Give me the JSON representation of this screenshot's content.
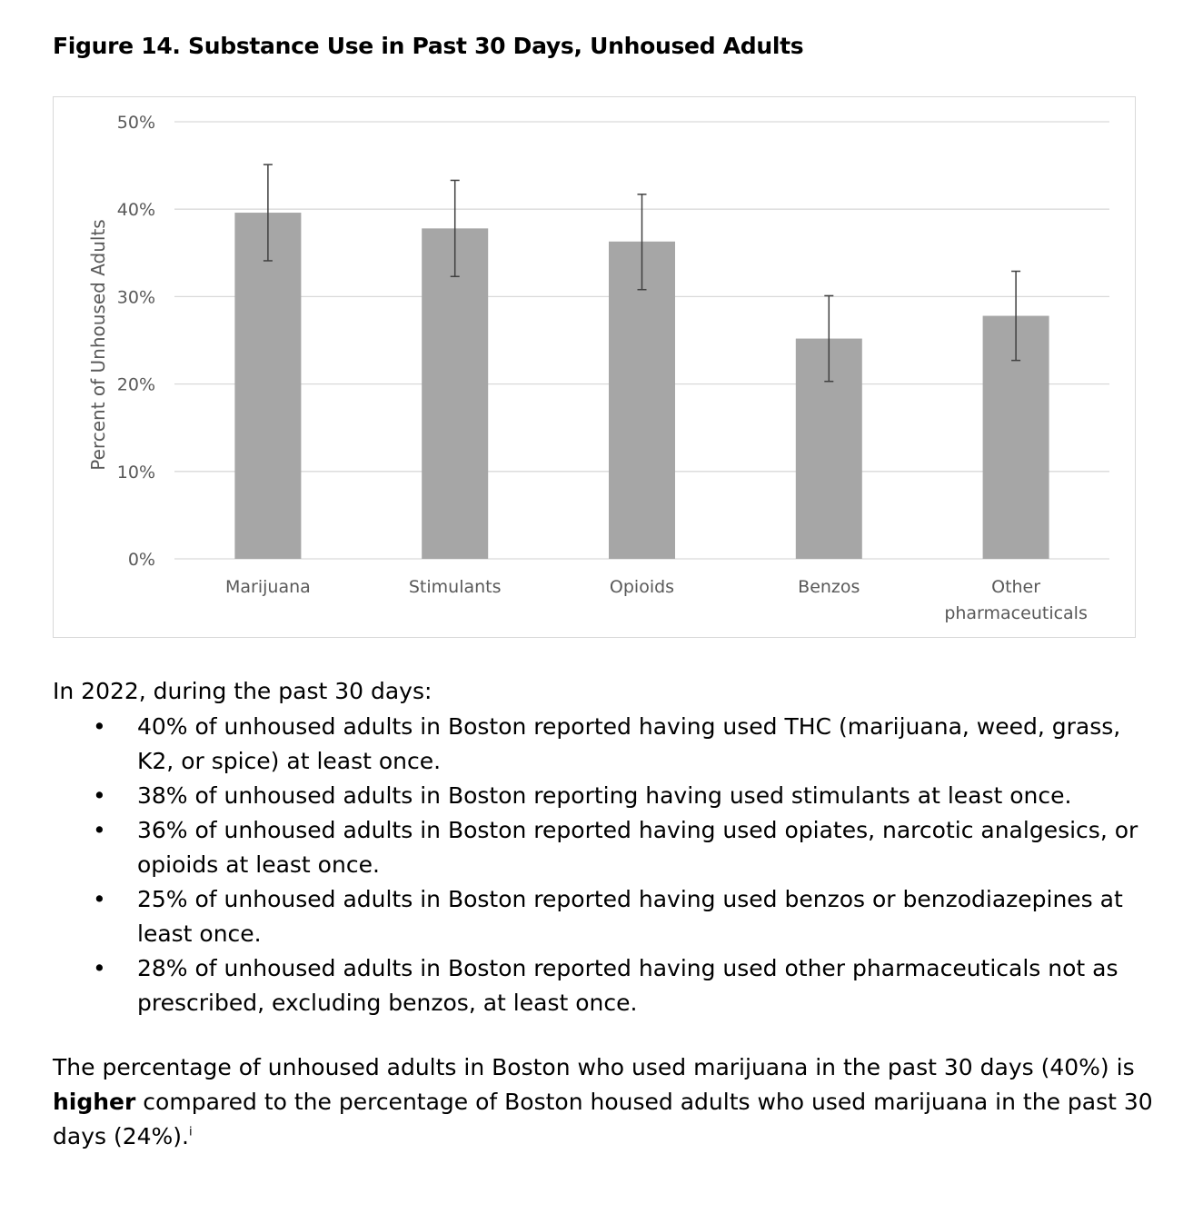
{
  "figure_title": "Figure 14. Substance Use in Past 30 Days, Unhoused Adults",
  "chart_data": {
    "type": "bar",
    "ylabel": "Percent of Unhoused Adults",
    "xlabel": "",
    "ylim": [
      0,
      50
    ],
    "yticks": [
      "0%",
      "10%",
      "20%",
      "30%",
      "40%",
      "50%"
    ],
    "grid": true,
    "categories": [
      "Marijuana",
      "Stimulants",
      "Opioids",
      "Benzos",
      "Other pharmaceuticals"
    ],
    "values": [
      39.6,
      37.8,
      36.3,
      25.2,
      27.8
    ],
    "error_low": [
      34.1,
      32.3,
      30.8,
      20.3,
      22.7
    ],
    "error_high": [
      45.1,
      43.3,
      41.7,
      30.1,
      32.9
    ],
    "bar_color": "#a6a6a6",
    "error_color": "#404040",
    "grid_color": "#d9d9d9"
  },
  "text": {
    "intro": "In 2022, during the past 30 days:",
    "bullet_char": "•",
    "bullets": [
      "40% of unhoused adults in Boston reported having used THC (marijuana, weed, grass, K2, or spice) at least once.",
      "38% of unhoused adults in Boston reporting having used stimulants at least once.",
      "36% of unhoused adults in Boston reported having used opiates, narcotic analgesics, or opioids at least once.",
      "25% of unhoused adults in Boston reported having used benzos or benzodiazepines at least once.",
      "28% of unhoused adults in Boston reported having used other pharmaceuticals not as prescribed, excluding benzos, at least once."
    ],
    "closing_part1": "The percentage of unhoused adults in Boston who used marijuana in the past 30 days (40%) is ",
    "closing_bold": "higher",
    "closing_part2": " compared to the percentage of Boston housed adults who used marijuana in the past 30 days (24%).",
    "footnote_mark": "i"
  }
}
